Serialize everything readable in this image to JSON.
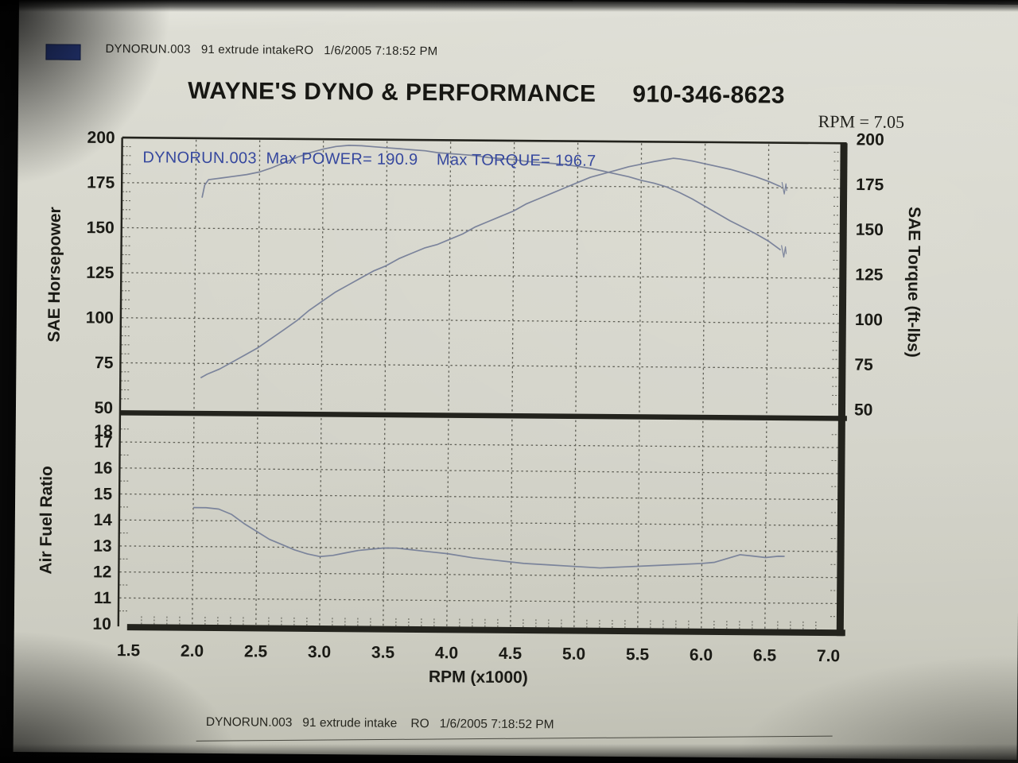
{
  "header": {
    "text": "DYNORUN.003   91 extrude intakeRO   1/6/2005 7:18:52 PM"
  },
  "title": {
    "name": "WAYNE'S DYNO & PERFORMANCE",
    "phone": "910-346-8623"
  },
  "cursor_readout": "RPM = 7.05",
  "footer": {
    "text": "DYNORUN.003   91 extrude intake    RO   1/6/2005 7:18:52 PM"
  },
  "colors": {
    "swatch_blue": "#2e4494",
    "annotation_blue": "#36489e",
    "curve": "#767f99",
    "grid": "#4c4c43",
    "frame": "#23231d",
    "text": "#1a1a15"
  },
  "chart_data": {
    "type": "line",
    "annotation": "DYNORUN.003  Max POWER= 190.9    Max TORQUE= 196.7",
    "max_power_hp": 190.9,
    "max_torque_ftlbs": 196.7,
    "x_axis": {
      "label": "RPM (x1000)",
      "range": [
        1.5,
        7.0
      ],
      "tick_labels": [
        "1.5",
        "2.0",
        "2.5",
        "3.0",
        "3.5",
        "4.0",
        "4.5",
        "5.0",
        "5.5",
        "6.0",
        "6.5",
        "7.0"
      ]
    },
    "panels": [
      {
        "name": "power-torque-panel",
        "ylim": [
          50,
          200
        ],
        "y_axis_left": {
          "label": "SAE Horsepower",
          "ticks": [
            200,
            175,
            150,
            125,
            100,
            75,
            50
          ]
        },
        "y_axis_right": {
          "label": "SAE Torque (ft-lbs)",
          "ticks": [
            200,
            175,
            150,
            125,
            100,
            75,
            50
          ]
        },
        "series": [
          {
            "name": "SAE Horsepower",
            "end_glitch": true,
            "points": [
              [
                2.05,
                67
              ],
              [
                2.1,
                69
              ],
              [
                2.2,
                72
              ],
              [
                2.3,
                76
              ],
              [
                2.4,
                80
              ],
              [
                2.5,
                84
              ],
              [
                2.6,
                89
              ],
              [
                2.7,
                94
              ],
              [
                2.8,
                99
              ],
              [
                2.9,
                105
              ],
              [
                3.0,
                110
              ],
              [
                3.1,
                115
              ],
              [
                3.2,
                119
              ],
              [
                3.3,
                123
              ],
              [
                3.4,
                127
              ],
              [
                3.5,
                130
              ],
              [
                3.6,
                134
              ],
              [
                3.7,
                137
              ],
              [
                3.8,
                140
              ],
              [
                3.9,
                142
              ],
              [
                4.0,
                145
              ],
              [
                4.1,
                148
              ],
              [
                4.2,
                152
              ],
              [
                4.3,
                155
              ],
              [
                4.4,
                158
              ],
              [
                4.5,
                161
              ],
              [
                4.6,
                165
              ],
              [
                4.7,
                168
              ],
              [
                4.8,
                171
              ],
              [
                4.9,
                174
              ],
              [
                5.0,
                177
              ],
              [
                5.1,
                180
              ],
              [
                5.2,
                182
              ],
              [
                5.3,
                184
              ],
              [
                5.4,
                186
              ],
              [
                5.5,
                187.5
              ],
              [
                5.6,
                189
              ],
              [
                5.7,
                190.3
              ],
              [
                5.75,
                190.9
              ],
              [
                5.8,
                190.6
              ],
              [
                5.9,
                189.5
              ],
              [
                6.0,
                188
              ],
              [
                6.1,
                186.5
              ],
              [
                6.2,
                185
              ],
              [
                6.3,
                183
              ],
              [
                6.4,
                181
              ],
              [
                6.5,
                178.5
              ],
              [
                6.6,
                175.5
              ]
            ]
          },
          {
            "name": "SAE Torque",
            "end_glitch": true,
            "points": [
              [
                2.05,
                167
              ],
              [
                2.07,
                174
              ],
              [
                2.1,
                177
              ],
              [
                2.2,
                178
              ],
              [
                2.3,
                179
              ],
              [
                2.4,
                180
              ],
              [
                2.5,
                181.5
              ],
              [
                2.6,
                184
              ],
              [
                2.7,
                187
              ],
              [
                2.8,
                190
              ],
              [
                2.9,
                192.5
              ],
              [
                3.0,
                194.5
              ],
              [
                3.1,
                196
              ],
              [
                3.2,
                196.7
              ],
              [
                3.3,
                196.5
              ],
              [
                3.4,
                196
              ],
              [
                3.5,
                195.5
              ],
              [
                3.6,
                195
              ],
              [
                3.7,
                194.5
              ],
              [
                3.8,
                194
              ],
              [
                3.9,
                193
              ],
              [
                4.0,
                192.5
              ],
              [
                4.1,
                192
              ],
              [
                4.2,
                191.5
              ],
              [
                4.3,
                190.5
              ],
              [
                4.4,
                190
              ],
              [
                4.5,
                189.5
              ],
              [
                4.6,
                188.5
              ],
              [
                4.7,
                188
              ],
              [
                4.8,
                187.5
              ],
              [
                4.9,
                187
              ],
              [
                5.0,
                186
              ],
              [
                5.1,
                185
              ],
              [
                5.2,
                183.5
              ],
              [
                5.3,
                182
              ],
              [
                5.4,
                180.5
              ],
              [
                5.5,
                178.5
              ],
              [
                5.6,
                177
              ],
              [
                5.7,
                175
              ],
              [
                5.8,
                172
              ],
              [
                5.9,
                168.5
              ],
              [
                6.0,
                164.5
              ],
              [
                6.1,
                160.5
              ],
              [
                6.2,
                156.5
              ],
              [
                6.3,
                153
              ],
              [
                6.4,
                149.5
              ],
              [
                6.5,
                145.5
              ],
              [
                6.6,
                140.5
              ]
            ]
          }
        ]
      },
      {
        "name": "afr-panel",
        "ylim": [
          10,
          18
        ],
        "y_axis_left": {
          "label": "Air Fuel Ratio",
          "ticks": [
            18,
            17,
            16,
            15,
            14,
            13,
            12,
            11,
            10
          ]
        },
        "series": [
          {
            "name": "Air Fuel Ratio",
            "end_glitch": false,
            "points": [
              [
                2.0,
                14.5
              ],
              [
                2.1,
                14.5
              ],
              [
                2.2,
                14.45
              ],
              [
                2.3,
                14.25
              ],
              [
                2.4,
                13.9
              ],
              [
                2.5,
                13.6
              ],
              [
                2.6,
                13.3
              ],
              [
                2.7,
                13.1
              ],
              [
                2.8,
                12.9
              ],
              [
                2.9,
                12.75
              ],
              [
                3.0,
                12.65
              ],
              [
                3.1,
                12.7
              ],
              [
                3.2,
                12.8
              ],
              [
                3.3,
                12.9
              ],
              [
                3.4,
                12.95
              ],
              [
                3.5,
                13.0
              ],
              [
                3.6,
                13.0
              ],
              [
                3.7,
                12.95
              ],
              [
                3.8,
                12.9
              ],
              [
                3.9,
                12.85
              ],
              [
                4.0,
                12.8
              ],
              [
                4.2,
                12.65
              ],
              [
                4.4,
                12.55
              ],
              [
                4.6,
                12.45
              ],
              [
                4.8,
                12.4
              ],
              [
                5.0,
                12.35
              ],
              [
                5.2,
                12.3
              ],
              [
                5.4,
                12.35
              ],
              [
                5.6,
                12.4
              ],
              [
                5.8,
                12.45
              ],
              [
                6.0,
                12.5
              ],
              [
                6.1,
                12.55
              ],
              [
                6.2,
                12.7
              ],
              [
                6.3,
                12.85
              ],
              [
                6.4,
                12.8
              ],
              [
                6.5,
                12.75
              ],
              [
                6.6,
                12.8
              ],
              [
                6.65,
                12.8
              ]
            ]
          }
        ]
      }
    ]
  }
}
